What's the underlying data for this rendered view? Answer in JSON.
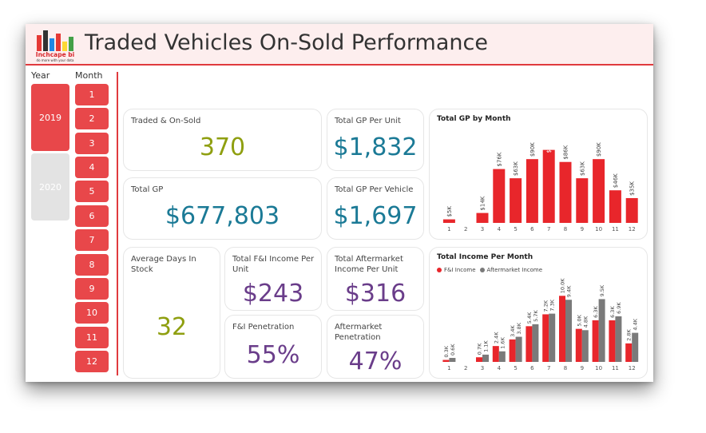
{
  "header": {
    "title": "Traded Vehicles On-Sold Performance",
    "logo_brand": "Inchcape bi",
    "logo_tagline": "do more with your data",
    "logo_bar_colors": [
      "#e53935",
      "#333333",
      "#1e88e5",
      "#fdd835",
      "#43a047"
    ]
  },
  "slicers": {
    "year_label": "Year",
    "month_label": "Month",
    "years": [
      {
        "label": "2019",
        "selected": true
      },
      {
        "label": "2020",
        "selected": false
      }
    ],
    "months": [
      "1",
      "2",
      "3",
      "4",
      "5",
      "6",
      "7",
      "8",
      "9",
      "10",
      "11",
      "12"
    ]
  },
  "kpis": {
    "traded_on_sold": {
      "label": "Traded & On-Sold",
      "value": "370"
    },
    "total_gp_per_unit": {
      "label": "Total GP Per Unit",
      "value": "$1,832"
    },
    "total_gp": {
      "label": "Total GP",
      "value": "$677,803"
    },
    "total_gp_per_vehicle": {
      "label": "Total GP Per Vehicle",
      "value": "$1,697"
    },
    "avg_days_in_stock": {
      "label": "Average Days In Stock",
      "value": "32"
    },
    "total_fi_income_per_unit": {
      "label": "Total F&I Income Per Unit",
      "value": "$243"
    },
    "total_aftermarket_income_per_unit": {
      "label": "Total Aftermarket Income Per Unit",
      "value": "$316"
    },
    "fi_penetration": {
      "label": "F&I Penetration",
      "value": "55%"
    },
    "aftermarket_penetration": {
      "label": "Aftermarket Penetration",
      "value": "47%"
    }
  },
  "colors": {
    "accent_red": "#e03a3e",
    "olive": "#8f9f10",
    "teal": "#1b7a96",
    "purple": "#6a3d8a",
    "grey": "#7a7a7a",
    "year_unselected": "#e3e3e3"
  },
  "chart_data": [
    {
      "type": "bar",
      "title": "Total GP by Month",
      "categories": [
        "1",
        "2",
        "3",
        "4",
        "5",
        "6",
        "7",
        "8",
        "9",
        "10",
        "11",
        "12"
      ],
      "series": [
        {
          "values": [
            5,
            0,
            14,
            76,
            63,
            90,
            103,
            86,
            63,
            90,
            46,
            35
          ]
        }
      ],
      "data_labels": [
        "$5K",
        "",
        "$14K",
        "$76K",
        "$63K",
        "$90K",
        "$103K",
        "$86K",
        "$63K",
        "$90K",
        "$46K",
        "$35K"
      ],
      "ylim": [
        0,
        115
      ],
      "colors": [
        "#e8262b"
      ],
      "grid": false
    },
    {
      "type": "bar",
      "title": "Total Income Per Month",
      "categories": [
        "1",
        "2",
        "3",
        "4",
        "5",
        "6",
        "7",
        "8",
        "9",
        "10",
        "11",
        "12"
      ],
      "series": [
        {
          "name": "F&I Income",
          "values": [
            0.3,
            0,
            0.7,
            2.4,
            3.4,
            5.4,
            7.2,
            10.0,
            5.0,
            6.3,
            6.3,
            2.8
          ],
          "labels": [
            "0.3K",
            "",
            "0.7K",
            "2.4K",
            "3.4K",
            "5.4K",
            "7.2K",
            "10.0K",
            "5.0K",
            "6.3K",
            "6.3K",
            "2.8K"
          ]
        },
        {
          "name": "Aftermarket Income",
          "values": [
            0.6,
            0,
            1.1,
            1.6,
            3.8,
            5.7,
            7.3,
            9.4,
            4.8,
            9.5,
            6.9,
            4.4
          ],
          "labels": [
            "0.6K",
            "",
            "1.1K",
            "1.6K",
            "3.8K",
            "5.7K",
            "7.3K",
            "9.4K",
            "4.8K",
            "9.5K",
            "6.9K",
            "4.4K"
          ]
        }
      ],
      "ylim": [
        0,
        11
      ],
      "colors": [
        "#e8262b",
        "#7a7a7a"
      ],
      "legend": "top-left",
      "grid": false
    }
  ]
}
